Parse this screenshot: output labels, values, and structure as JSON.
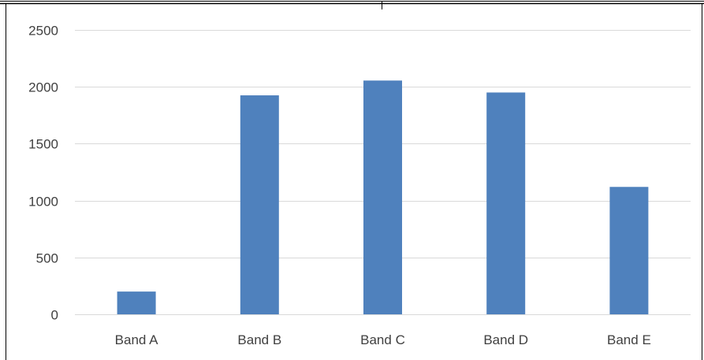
{
  "chart_data": {
    "type": "bar",
    "categories": [
      "Band A",
      "Band B",
      "Band C",
      "Band D",
      "Band E"
    ],
    "values": [
      200,
      1925,
      2055,
      1950,
      1120
    ],
    "ylim": [
      0,
      2500
    ],
    "yticks": [
      0,
      500,
      1000,
      1500,
      2000,
      2500
    ],
    "grid": true,
    "bar_color": "#4f81bd",
    "grid_color": "#d9d9d9",
    "border_color": "#000000"
  }
}
